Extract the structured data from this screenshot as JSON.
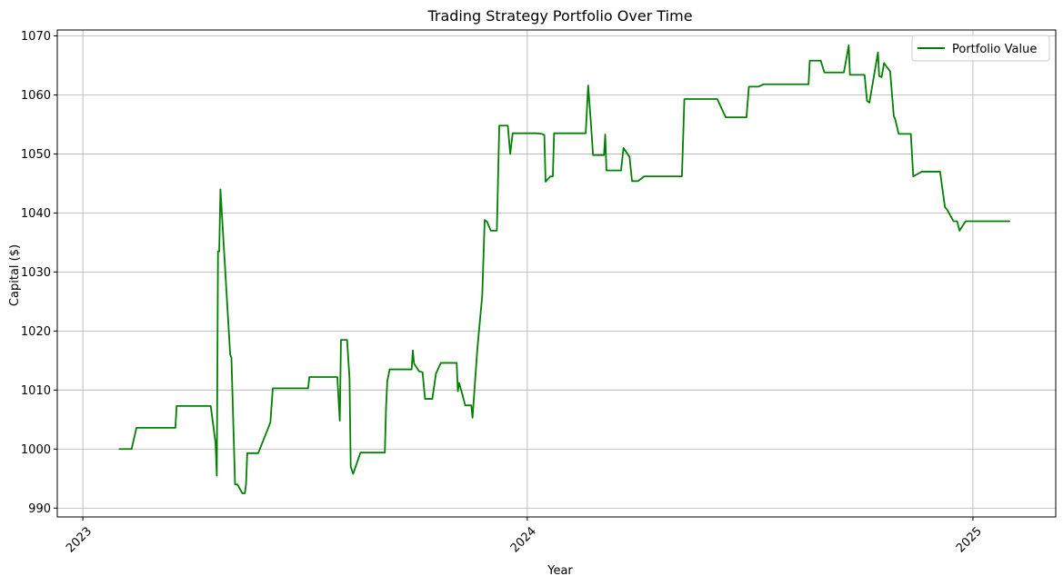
{
  "chart_data": {
    "type": "line",
    "title": "Trading Strategy Portfolio Over Time",
    "xlabel": "Year",
    "ylabel": "Capital ($)",
    "xlim": [
      "2022-12-11",
      "2025-03-10"
    ],
    "ylim": [
      988.5,
      1071
    ],
    "x_ticks": [
      "2023-01-01",
      "2024-01-01",
      "2025-01-01"
    ],
    "x_tick_labels": [
      "2023",
      "2024",
      "2025"
    ],
    "y_ticks": [
      990,
      1000,
      1010,
      1020,
      1030,
      1040,
      1050,
      1060,
      1070
    ],
    "y_tick_labels": [
      "990",
      "1000",
      "1010",
      "1020",
      "1030",
      "1040",
      "1050",
      "1060",
      "1070"
    ],
    "grid": true,
    "legend_position": "top-right",
    "series": [
      {
        "name": "Portfolio Value",
        "color": "#008000",
        "points": [
          [
            "2023-01-31",
            1000.0
          ],
          [
            "2023-02-10",
            1000.0
          ],
          [
            "2023-02-14",
            1003.6
          ],
          [
            "2023-03-01",
            1003.6
          ],
          [
            "2023-03-18",
            1003.6
          ],
          [
            "2023-03-19",
            1007.3
          ],
          [
            "2023-04-10",
            1007.3
          ],
          [
            "2023-04-16",
            1007.3
          ],
          [
            "2023-04-20",
            1001.0
          ],
          [
            "2023-04-21",
            995.5
          ],
          [
            "2023-04-22",
            1033.5
          ],
          [
            "2023-04-23",
            1033.5
          ],
          [
            "2023-04-24",
            1044.0
          ],
          [
            "2023-04-28",
            1030.0
          ],
          [
            "2023-05-02",
            1016.0
          ],
          [
            "2023-05-03",
            1015.5
          ],
          [
            "2023-05-06",
            994.0
          ],
          [
            "2023-05-08",
            994.0
          ],
          [
            "2023-05-12",
            992.5
          ],
          [
            "2023-05-14",
            992.5
          ],
          [
            "2023-05-15",
            994.0
          ],
          [
            "2023-05-16",
            999.3
          ],
          [
            "2023-05-25",
            999.3
          ],
          [
            "2023-06-04",
            1004.5
          ],
          [
            "2023-06-06",
            1010.3
          ],
          [
            "2023-06-28",
            1010.3
          ],
          [
            "2023-07-05",
            1010.3
          ],
          [
            "2023-07-06",
            1012.2
          ],
          [
            "2023-07-25",
            1012.2
          ],
          [
            "2023-07-29",
            1012.2
          ],
          [
            "2023-07-31",
            1004.8
          ],
          [
            "2023-08-01",
            1018.5
          ],
          [
            "2023-08-06",
            1018.5
          ],
          [
            "2023-08-08",
            1012.0
          ],
          [
            "2023-08-09",
            997.0
          ],
          [
            "2023-08-11",
            995.8
          ],
          [
            "2023-08-17",
            999.4
          ],
          [
            "2023-08-30",
            999.4
          ],
          [
            "2023-09-06",
            999.4
          ],
          [
            "2023-09-07",
            1007.0
          ],
          [
            "2023-09-08",
            1011.5
          ],
          [
            "2023-09-10",
            1013.5
          ],
          [
            "2023-09-28",
            1013.5
          ],
          [
            "2023-09-29",
            1016.7
          ],
          [
            "2023-09-30",
            1014.5
          ],
          [
            "2023-10-04",
            1013.2
          ],
          [
            "2023-10-07",
            1013.0
          ],
          [
            "2023-10-09",
            1008.5
          ],
          [
            "2023-10-15",
            1008.5
          ],
          [
            "2023-10-18",
            1012.8
          ],
          [
            "2023-10-22",
            1014.6
          ],
          [
            "2023-11-04",
            1014.6
          ],
          [
            "2023-11-05",
            1009.8
          ],
          [
            "2023-11-06",
            1011.2
          ],
          [
            "2023-11-08",
            1009.8
          ],
          [
            "2023-11-11",
            1007.4
          ],
          [
            "2023-11-16",
            1007.4
          ],
          [
            "2023-11-17",
            1005.3
          ],
          [
            "2023-11-21",
            1017.0
          ],
          [
            "2023-11-25",
            1026.0
          ],
          [
            "2023-11-27",
            1038.8
          ],
          [
            "2023-11-29",
            1038.5
          ],
          [
            "2023-12-02",
            1037.0
          ],
          [
            "2023-12-07",
            1037.0
          ],
          [
            "2023-12-09",
            1054.8
          ],
          [
            "2023-12-16",
            1054.8
          ],
          [
            "2023-12-18",
            1050.0
          ],
          [
            "2023-12-20",
            1053.5
          ],
          [
            "2024-01-09",
            1053.5
          ],
          [
            "2024-01-13",
            1053.4
          ],
          [
            "2024-01-15",
            1053.2
          ],
          [
            "2024-01-16",
            1045.3
          ],
          [
            "2024-01-20",
            1046.2
          ],
          [
            "2024-01-22",
            1046.2
          ],
          [
            "2024-01-23",
            1053.5
          ],
          [
            "2024-02-18",
            1053.5
          ],
          [
            "2024-02-20",
            1061.6
          ],
          [
            "2024-02-22",
            1056.0
          ],
          [
            "2024-02-24",
            1049.8
          ],
          [
            "2024-03-04",
            1049.8
          ],
          [
            "2024-03-05",
            1053.3
          ],
          [
            "2024-03-06",
            1047.2
          ],
          [
            "2024-03-18",
            1047.2
          ],
          [
            "2024-03-20",
            1051.0
          ],
          [
            "2024-03-25",
            1049.5
          ],
          [
            "2024-03-27",
            1045.4
          ],
          [
            "2024-04-01",
            1045.4
          ],
          [
            "2024-04-06",
            1046.2
          ],
          [
            "2024-05-07",
            1046.2
          ],
          [
            "2024-05-09",
            1059.3
          ],
          [
            "2024-06-05",
            1059.3
          ],
          [
            "2024-06-12",
            1056.2
          ],
          [
            "2024-06-29",
            1056.2
          ],
          [
            "2024-07-01",
            1061.4
          ],
          [
            "2024-07-09",
            1061.4
          ],
          [
            "2024-07-13",
            1061.8
          ],
          [
            "2024-08-19",
            1061.8
          ],
          [
            "2024-08-20",
            1065.8
          ],
          [
            "2024-08-29",
            1065.8
          ],
          [
            "2024-09-01",
            1063.8
          ],
          [
            "2024-09-17",
            1063.8
          ],
          [
            "2024-09-21",
            1068.4
          ],
          [
            "2024-09-22",
            1063.4
          ],
          [
            "2024-10-04",
            1063.4
          ],
          [
            "2024-10-06",
            1059.0
          ],
          [
            "2024-10-08",
            1058.7
          ],
          [
            "2024-10-15",
            1067.2
          ],
          [
            "2024-10-16",
            1063.2
          ],
          [
            "2024-10-18",
            1063.0
          ],
          [
            "2024-10-20",
            1065.4
          ],
          [
            "2024-10-22",
            1064.8
          ],
          [
            "2024-10-25",
            1064.0
          ],
          [
            "2024-10-28",
            1056.4
          ],
          [
            "2024-10-29",
            1056.0
          ],
          [
            "2024-11-01",
            1053.4
          ],
          [
            "2024-11-11",
            1053.4
          ],
          [
            "2024-11-13",
            1046.2
          ],
          [
            "2024-11-20",
            1047.0
          ],
          [
            "2024-12-05",
            1047.0
          ],
          [
            "2024-12-09",
            1041.0
          ],
          [
            "2024-12-11",
            1040.5
          ],
          [
            "2024-12-16",
            1038.6
          ],
          [
            "2024-12-19",
            1038.6
          ],
          [
            "2024-12-21",
            1037.0
          ],
          [
            "2024-12-26",
            1038.6
          ],
          [
            "2025-01-31",
            1038.6
          ]
        ]
      }
    ]
  }
}
